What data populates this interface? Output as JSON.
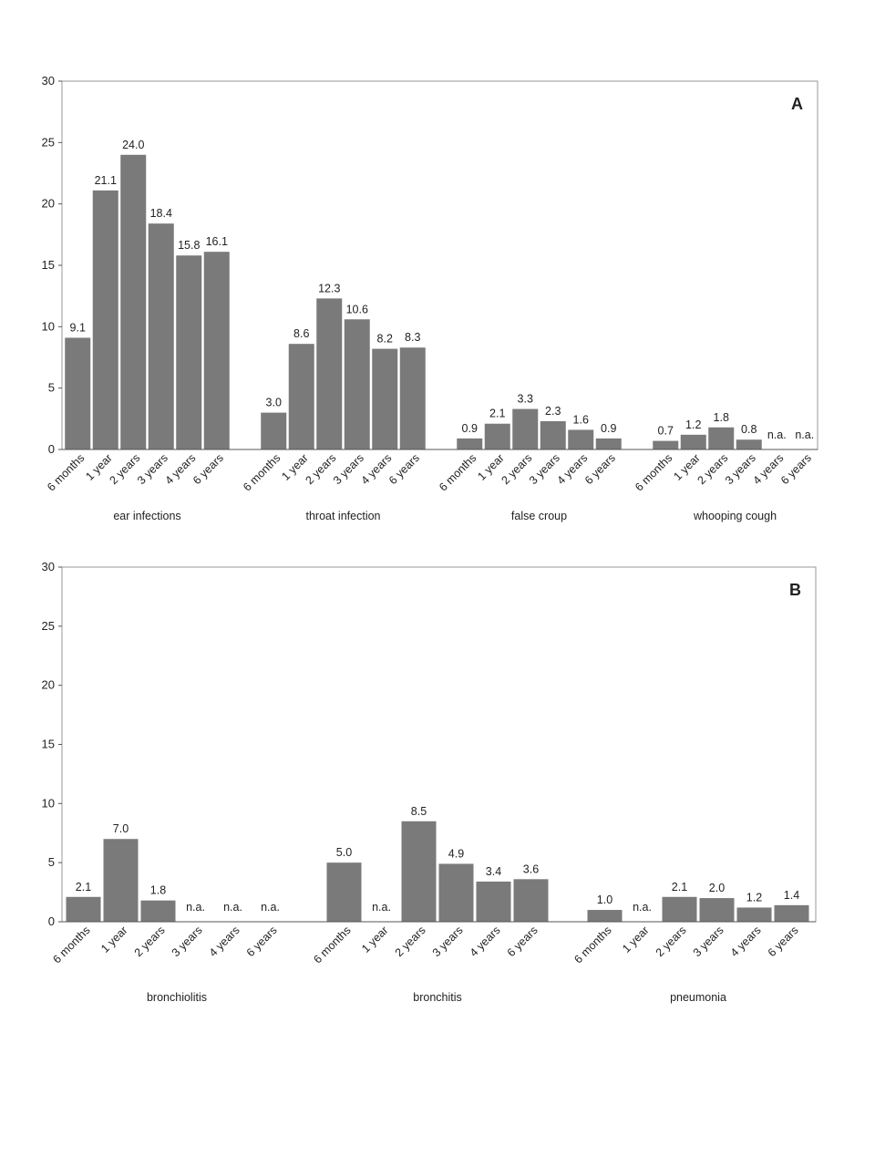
{
  "chart_data": [
    {
      "type": "bar",
      "panel_label": "A",
      "ylim": [
        0,
        30
      ],
      "yticks": [
        0,
        5,
        10,
        15,
        20,
        25,
        30
      ],
      "grid": false,
      "color": "#7a7a7a",
      "categories": [
        "6 months",
        "1 year",
        "2 years",
        "3 years",
        "4 years",
        "6 years"
      ],
      "groups": [
        {
          "name": "ear infections",
          "values": [
            9.1,
            21.1,
            24.0,
            18.4,
            15.8,
            16.1
          ],
          "labels": [
            "9.1",
            "21.1",
            "24.0",
            "18.4",
            "15.8",
            "16.1"
          ]
        },
        {
          "name": "throat infection",
          "values": [
            3.0,
            8.6,
            12.3,
            10.6,
            8.2,
            8.3
          ],
          "labels": [
            "3.0",
            "8.6",
            "12.3",
            "10.6",
            "8.2",
            "8.3"
          ]
        },
        {
          "name": "false croup",
          "values": [
            0.9,
            2.1,
            3.3,
            2.3,
            1.6,
            0.9
          ],
          "labels": [
            "0.9",
            "2.1",
            "3.3",
            "2.3",
            "1.6",
            "0.9"
          ]
        },
        {
          "name": "whooping cough",
          "values": [
            0.7,
            1.2,
            1.8,
            0.8,
            null,
            null
          ],
          "labels": [
            "0.7",
            "1.2",
            "1.8",
            "0.8",
            "n.a.",
            "n.a."
          ]
        }
      ]
    },
    {
      "type": "bar",
      "panel_label": "B",
      "ylim": [
        0,
        30
      ],
      "yticks": [
        0,
        5,
        10,
        15,
        20,
        25,
        30
      ],
      "grid": false,
      "color": "#7a7a7a",
      "categories": [
        "6 months",
        "1 year",
        "2 years",
        "3 years",
        "4 years",
        "6 years"
      ],
      "groups": [
        {
          "name": "bronchiolitis",
          "values": [
            2.1,
            7.0,
            1.8,
            null,
            null,
            null
          ],
          "labels": [
            "2.1",
            "7.0",
            "1.8",
            "n.a.",
            "n.a.",
            "n.a."
          ]
        },
        {
          "name": "bronchitis",
          "values": [
            5.0,
            null,
            8.5,
            4.9,
            3.4,
            3.6
          ],
          "labels": [
            "5.0",
            "n.a.",
            "8.5",
            "4.9",
            "3.4",
            "3.6"
          ]
        },
        {
          "name": "pneumonia",
          "values": [
            1.0,
            null,
            2.1,
            2.0,
            1.2,
            1.4
          ],
          "labels": [
            "1.0",
            "n.a.",
            "2.1",
            "2.0",
            "1.2",
            "1.4"
          ]
        }
      ]
    }
  ]
}
